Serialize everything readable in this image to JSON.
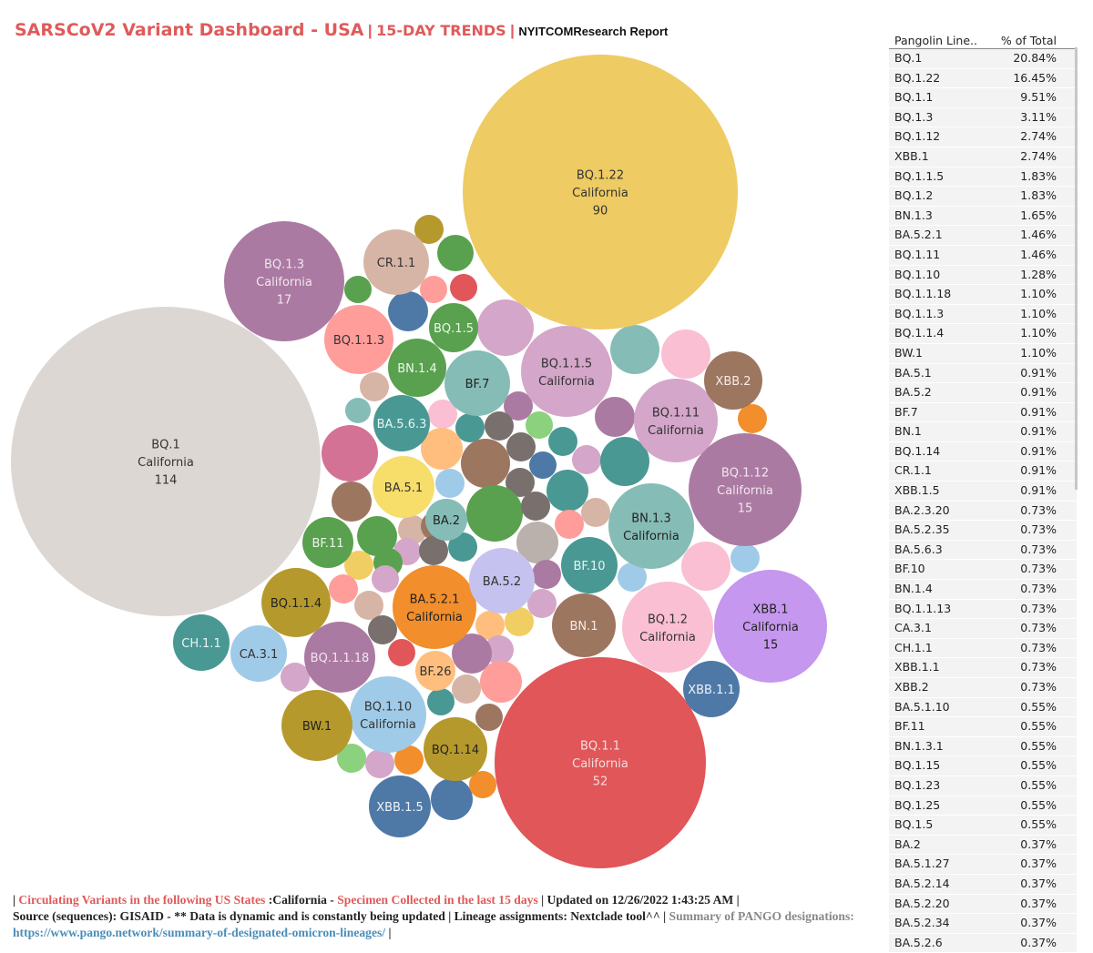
{
  "title": {
    "main": "SARSCoV2 Variant Dashboard - USA",
    "separator": "|",
    "trend": "15-DAY TRENDS",
    "report": "NYITCOMResearch Report"
  },
  "table": {
    "col1": "Pangolin Line..",
    "col2": "% of Total",
    "rows": [
      {
        "lineage": "BQ.1",
        "pct": "20.84%"
      },
      {
        "lineage": "BQ.1.22",
        "pct": "16.45%"
      },
      {
        "lineage": "BQ.1.1",
        "pct": "9.51%"
      },
      {
        "lineage": "BQ.1.3",
        "pct": "3.11%"
      },
      {
        "lineage": "BQ.1.12",
        "pct": "2.74%"
      },
      {
        "lineage": "XBB.1",
        "pct": "2.74%"
      },
      {
        "lineage": "BQ.1.1.5",
        "pct": "1.83%"
      },
      {
        "lineage": "BQ.1.2",
        "pct": "1.83%"
      },
      {
        "lineage": "BN.1.3",
        "pct": "1.65%"
      },
      {
        "lineage": "BA.5.2.1",
        "pct": "1.46%"
      },
      {
        "lineage": "BQ.1.11",
        "pct": "1.46%"
      },
      {
        "lineage": "BQ.1.10",
        "pct": "1.28%"
      },
      {
        "lineage": "BQ.1.1.18",
        "pct": "1.10%"
      },
      {
        "lineage": "BQ.1.1.3",
        "pct": "1.10%"
      },
      {
        "lineage": "BQ.1.1.4",
        "pct": "1.10%"
      },
      {
        "lineage": "BW.1",
        "pct": "1.10%"
      },
      {
        "lineage": "BA.5.1",
        "pct": "0.91%"
      },
      {
        "lineage": "BA.5.2",
        "pct": "0.91%"
      },
      {
        "lineage": "BF.7",
        "pct": "0.91%"
      },
      {
        "lineage": "BN.1",
        "pct": "0.91%"
      },
      {
        "lineage": "BQ.1.14",
        "pct": "0.91%"
      },
      {
        "lineage": "CR.1.1",
        "pct": "0.91%"
      },
      {
        "lineage": "XBB.1.5",
        "pct": "0.91%"
      },
      {
        "lineage": "BA.2.3.20",
        "pct": "0.73%"
      },
      {
        "lineage": "BA.5.2.35",
        "pct": "0.73%"
      },
      {
        "lineage": "BA.5.6.3",
        "pct": "0.73%"
      },
      {
        "lineage": "BF.10",
        "pct": "0.73%"
      },
      {
        "lineage": "BN.1.4",
        "pct": "0.73%"
      },
      {
        "lineage": "BQ.1.1.13",
        "pct": "0.73%"
      },
      {
        "lineage": "CA.3.1",
        "pct": "0.73%"
      },
      {
        "lineage": "CH.1.1",
        "pct": "0.73%"
      },
      {
        "lineage": "XBB.1.1",
        "pct": "0.73%"
      },
      {
        "lineage": "XBB.2",
        "pct": "0.73%"
      },
      {
        "lineage": "BA.5.1.10",
        "pct": "0.55%"
      },
      {
        "lineage": "BF.11",
        "pct": "0.55%"
      },
      {
        "lineage": "BN.1.3.1",
        "pct": "0.55%"
      },
      {
        "lineage": "BQ.1.15",
        "pct": "0.55%"
      },
      {
        "lineage": "BQ.1.23",
        "pct": "0.55%"
      },
      {
        "lineage": "BQ.1.25",
        "pct": "0.55%"
      },
      {
        "lineage": "BQ.1.5",
        "pct": "0.55%"
      },
      {
        "lineage": "BA.2",
        "pct": "0.37%"
      },
      {
        "lineage": "BA.5.1.27",
        "pct": "0.37%"
      },
      {
        "lineage": "BA.5.2.14",
        "pct": "0.37%"
      },
      {
        "lineage": "BA.5.2.20",
        "pct": "0.37%"
      },
      {
        "lineage": "BA.5.2.34",
        "pct": "0.37%"
      },
      {
        "lineage": "BA.5.2.6",
        "pct": "0.37%"
      }
    ]
  },
  "footer": {
    "bar1": "| ",
    "circulating": "Circulating Variants in the following US States ",
    "states": ":California - ",
    "specimen": "Specimen Collected in the last 15 days ",
    "updated": "| Updated on 12/26/2022 1:43:25 AM |",
    "source": "Source (sequences): GISAID - ** Data is dynamic and is constantly being updated | Lineage assignments: Nextclade tool^^ | ",
    "summary": "Summary of PANGO designations:",
    "link": "https://www.pango.network/summary-of-designated-omicron-lineages/",
    "tail": " |"
  },
  "chart_data": {
    "type": "bubble",
    "state_label": "California",
    "size_measure": "sequence count",
    "bubbles": [
      {
        "lineage": "BQ.1",
        "count": 114,
        "color": "#ddd7d3",
        "text_color": "#333333"
      },
      {
        "lineage": "BQ.1.22",
        "count": 90,
        "color": "#eecb63",
        "text_color": "#333333"
      },
      {
        "lineage": "BQ.1.1",
        "count": 52,
        "color": "#e05659",
        "text_color": "#f4dede"
      },
      {
        "lineage": "BQ.1.3",
        "count": 17,
        "color": "#ab7aa2",
        "text_color": "#f2e6ef"
      },
      {
        "lineage": "BQ.1.12",
        "count": 15,
        "color": "#ab7aa2",
        "text_color": "#f2e6ef"
      },
      {
        "lineage": "XBB.1",
        "count": 15,
        "color": "#c597ef",
        "text_color": "#222222"
      },
      {
        "lineage": "BQ.1.1.5",
        "count": null,
        "color": "#d4a6c9",
        "text_color": "#333333"
      },
      {
        "lineage": "BQ.1.11",
        "count": null,
        "color": "#d4a6c9",
        "text_color": "#333333"
      },
      {
        "lineage": "BN.1.3",
        "count": null,
        "color": "#86bcb6",
        "text_color": "#222222"
      },
      {
        "lineage": "BA.5.2.1",
        "count": null,
        "color": "#f28e2b",
        "text_color": "#222222"
      },
      {
        "lineage": "BQ.1.2",
        "count": null,
        "color": "#fabfd2",
        "text_color": "#333333"
      },
      {
        "lineage": "BQ.1.10",
        "count": null,
        "color": "#a0cbe8",
        "text_color": "#333333"
      },
      {
        "lineage": "BQ.1.1.3",
        "count": null,
        "color": "#ff9d9a",
        "text_color": "#333333"
      },
      {
        "lineage": "BQ.1.1.4",
        "count": null,
        "color": "#b6992d",
        "text_color": "#222222"
      },
      {
        "lineage": "BQ.1.1.18",
        "count": null,
        "color": "#ab7aa2",
        "text_color": "#f2e6ef"
      },
      {
        "lineage": "BW.1",
        "count": null,
        "color": "#b6992d",
        "text_color": "#222222"
      },
      {
        "lineage": "CR.1.1",
        "count": null,
        "color": "#d7b5a6",
        "text_color": "#333333"
      },
      {
        "lineage": "BF.7",
        "count": null,
        "color": "#86bcb6",
        "text_color": "#222222"
      },
      {
        "lineage": "BN.1.4",
        "count": null,
        "color": "#59a14f",
        "text_color": "#eef6ec"
      },
      {
        "lineage": "BQ.1.5",
        "count": null,
        "color": "#59a14f",
        "text_color": "#eef6ec"
      },
      {
        "lineage": "BA.5.6.3",
        "count": null,
        "color": "#499894",
        "text_color": "#eaf4f3"
      },
      {
        "lineage": "BA.5.1",
        "count": null,
        "color": "#f7dd6a",
        "text_color": "#333333"
      },
      {
        "lineage": "BA.2",
        "count": null,
        "color": "#86bcb6",
        "text_color": "#222222"
      },
      {
        "lineage": "BF.11",
        "count": null,
        "color": "#59a14f",
        "text_color": "#eef6ec"
      },
      {
        "lineage": "BA.5.2",
        "count": null,
        "color": "#c5c2ef",
        "text_color": "#333333"
      },
      {
        "lineage": "BF.10",
        "count": null,
        "color": "#499894",
        "text_color": "#eaf4f3"
      },
      {
        "lineage": "BN.1",
        "count": null,
        "color": "#9d7660",
        "text_color": "#f5ece6"
      },
      {
        "lineage": "XBB.2",
        "count": null,
        "color": "#9d7660",
        "text_color": "#f5ece6"
      },
      {
        "lineage": "CH.1.1",
        "count": null,
        "color": "#499894",
        "text_color": "#eaf4f3"
      },
      {
        "lineage": "CA.3.1",
        "count": null,
        "color": "#a0cbe8",
        "text_color": "#333333"
      },
      {
        "lineage": "BF.26",
        "count": null,
        "color": "#ffbe7d",
        "text_color": "#333333"
      },
      {
        "lineage": "BQ.1.14",
        "count": null,
        "color": "#b6992d",
        "text_color": "#222222"
      },
      {
        "lineage": "XBB.1.5",
        "count": null,
        "color": "#4e79a7",
        "text_color": "#eef2f8"
      },
      {
        "lineage": "XBB.1.1",
        "count": null,
        "color": "#4e79a7",
        "text_color": "#eef2f8"
      }
    ]
  }
}
